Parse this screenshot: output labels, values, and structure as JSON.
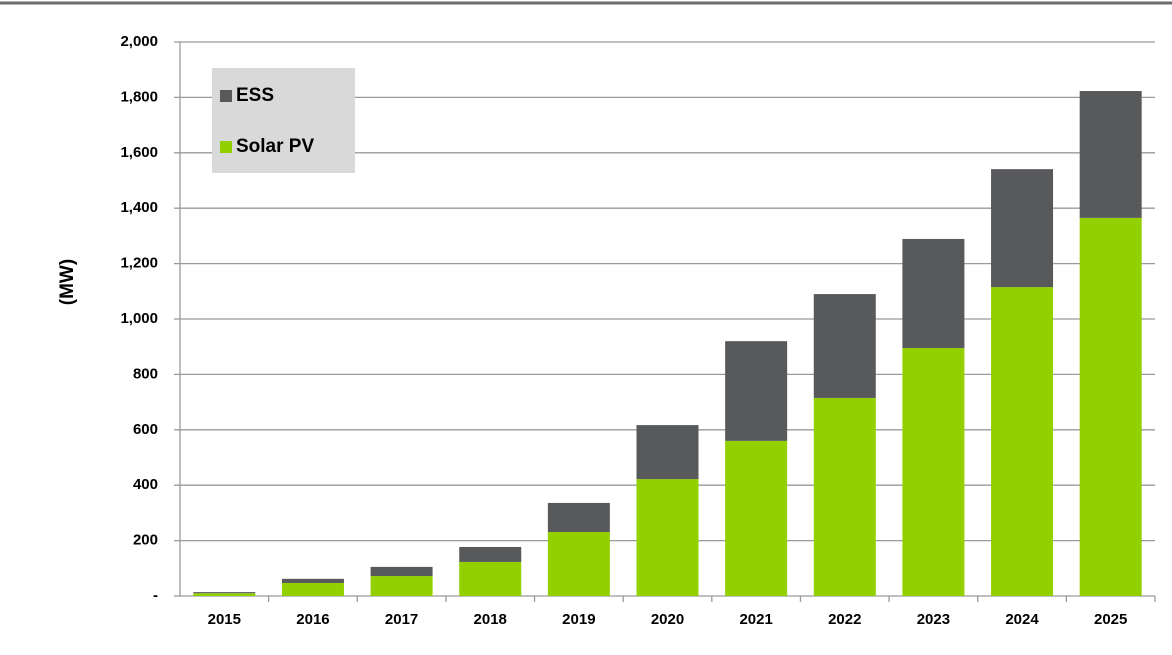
{
  "chart_data": {
    "type": "stacked_bar",
    "y_label": "(MW)",
    "categories": [
      "2015",
      "2016",
      "2017",
      "2018",
      "2019",
      "2020",
      "2021",
      "2022",
      "2023",
      "2024",
      "2025"
    ],
    "series": [
      {
        "name": "Solar PV",
        "color": "#92d000",
        "values": [
          10,
          47,
          72,
          123,
          231,
          422,
          560,
          715,
          895,
          1115,
          1365
        ]
      },
      {
        "name": "ESS",
        "color": "#58595b",
        "values": [
          4,
          15,
          33,
          54,
          105,
          195,
          360,
          375,
          394,
          426,
          458
        ]
      }
    ],
    "ylim": [
      0,
      2000
    ],
    "yticks": [
      {
        "value": 0,
        "label": "-"
      },
      200,
      400,
      600,
      800,
      {
        "value": 1000,
        "label": "1,000"
      },
      {
        "value": 1200,
        "label": "1,200"
      },
      {
        "value": 1400,
        "label": "1,400"
      },
      {
        "value": 1600,
        "label": "1,600"
      },
      {
        "value": 1800,
        "label": "1,800"
      },
      {
        "value": 2000,
        "label": "2,000"
      }
    ],
    "grid": true,
    "legend": "upper-left"
  }
}
